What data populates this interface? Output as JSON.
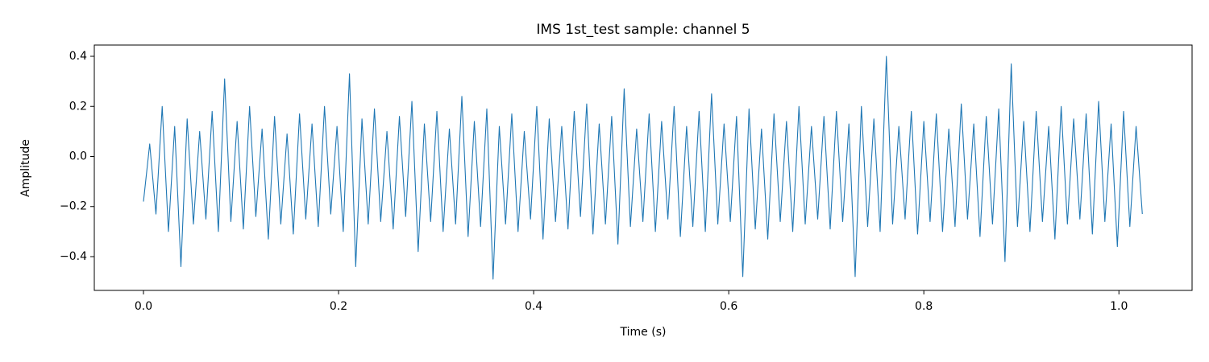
{
  "chart_data": {
    "type": "line",
    "title": "IMS 1st_test sample: channel 5",
    "xlabel": "Time (s)",
    "ylabel": "Amplitude",
    "color": "#1f77b4",
    "grid": false,
    "xlim": [
      -0.0504,
      1.075
    ],
    "ylim": [
      -0.535,
      0.445
    ],
    "xticks": [
      {
        "value": 0,
        "label": "0.0"
      },
      0.2,
      0.4,
      0.6,
      0.8,
      {
        "value": 1,
        "label": "1.0"
      }
    ],
    "yticks": [
      {
        "value": -0.4,
        "label": "−0.4"
      },
      {
        "value": -0.2,
        "label": "−0.2"
      },
      {
        "value": 0,
        "label": "0.0"
      },
      0.2,
      0.4
    ],
    "x": [
      0,
      0.0064,
      0.0128,
      0.0192,
      0.0256,
      0.032,
      0.0384,
      0.0448,
      0.0512,
      0.0576,
      0.064,
      0.0704,
      0.0768,
      0.0832,
      0.0896,
      0.096,
      0.1024,
      0.1088,
      0.1152,
      0.1216,
      0.128,
      0.1344,
      0.1408,
      0.1472,
      0.1536,
      0.16,
      0.1664,
      0.1728,
      0.1792,
      0.1856,
      0.192,
      0.1984,
      0.2048,
      0.2112,
      0.2176,
      0.224,
      0.2304,
      0.2368,
      0.2432,
      0.2496,
      0.256,
      0.2624,
      0.2688,
      0.2752,
      0.2816,
      0.288,
      0.2944,
      0.3008,
      0.3072,
      0.3136,
      0.32,
      0.3264,
      0.3328,
      0.3392,
      0.3456,
      0.352,
      0.3584,
      0.3648,
      0.3712,
      0.3776,
      0.384,
      0.3904,
      0.3968,
      0.4032,
      0.4096,
      0.416,
      0.4224,
      0.4288,
      0.4352,
      0.4416,
      0.448,
      0.4544,
      0.4608,
      0.4672,
      0.4736,
      0.48,
      0.4864,
      0.4928,
      0.4992,
      0.5056,
      0.512,
      0.5184,
      0.5248,
      0.5312,
      0.5376,
      0.544,
      0.5504,
      0.5568,
      0.5632,
      0.5696,
      0.576,
      0.5824,
      0.5888,
      0.5952,
      0.6016,
      0.608,
      0.6144,
      0.6208,
      0.6272,
      0.6336,
      0.64,
      0.6464,
      0.6528,
      0.6592,
      0.6656,
      0.672,
      0.6784,
      0.6848,
      0.6912,
      0.6976,
      0.704,
      0.7104,
      0.7168,
      0.7232,
      0.7296,
      0.736,
      0.7424,
      0.7488,
      0.7552,
      0.7616,
      0.768,
      0.7744,
      0.7808,
      0.7872,
      0.7936,
      0.8,
      0.8064,
      0.8128,
      0.8192,
      0.8256,
      0.832,
      0.8384,
      0.8448,
      0.8512,
      0.8576,
      0.864,
      0.8704,
      0.8768,
      0.8832,
      0.8896,
      0.896,
      0.9024,
      0.9088,
      0.9152,
      0.9216,
      0.928,
      0.9344,
      0.9408,
      0.9472,
      0.9536,
      0.96,
      0.9664,
      0.9728,
      0.9792,
      0.9856,
      0.992,
      0.9984,
      1.0048,
      1.0112,
      1.0176,
      1.024
    ],
    "values": [
      -0.18,
      0.05,
      -0.23,
      0.2,
      -0.3,
      0.12,
      -0.44,
      0.15,
      -0.27,
      0.1,
      -0.25,
      0.18,
      -0.3,
      0.31,
      -0.26,
      0.14,
      -0.29,
      0.2,
      -0.24,
      0.11,
      -0.33,
      0.16,
      -0.27,
      0.09,
      -0.31,
      0.17,
      -0.25,
      0.13,
      -0.28,
      0.2,
      -0.23,
      0.12,
      -0.3,
      0.33,
      -0.44,
      0.15,
      -0.27,
      0.19,
      -0.26,
      0.1,
      -0.29,
      0.16,
      -0.24,
      0.22,
      -0.38,
      0.13,
      -0.26,
      0.18,
      -0.3,
      0.11,
      -0.27,
      0.24,
      -0.32,
      0.14,
      -0.28,
      0.19,
      -0.49,
      0.12,
      -0.27,
      0.17,
      -0.3,
      0.1,
      -0.25,
      0.2,
      -0.33,
      0.15,
      -0.26,
      0.12,
      -0.29,
      0.18,
      -0.24,
      0.21,
      -0.31,
      0.13,
      -0.27,
      0.16,
      -0.35,
      0.27,
      -0.28,
      0.11,
      -0.26,
      0.17,
      -0.3,
      0.14,
      -0.25,
      0.2,
      -0.32,
      0.12,
      -0.28,
      0.18,
      -0.3,
      0.25,
      -0.27,
      0.13,
      -0.26,
      0.16,
      -0.48,
      0.19,
      -0.29,
      0.11,
      -0.33,
      0.17,
      -0.26,
      0.14,
      -0.3,
      0.2,
      -0.27,
      0.12,
      -0.25,
      0.16,
      -0.29,
      0.18,
      -0.26,
      0.13,
      -0.48,
      0.2,
      -0.28,
      0.15,
      -0.3,
      0.4,
      -0.27,
      0.12,
      -0.25,
      0.18,
      -0.31,
      0.14,
      -0.26,
      0.17,
      -0.3,
      0.11,
      -0.28,
      0.21,
      -0.25,
      0.13,
      -0.32,
      0.16,
      -0.27,
      0.19,
      -0.42,
      0.37,
      -0.28,
      0.14,
      -0.3,
      0.18,
      -0.26,
      0.12,
      -0.33,
      0.2,
      -0.27,
      0.15,
      -0.25,
      0.17,
      -0.31,
      0.22,
      -0.26,
      0.13,
      -0.36,
      0.18,
      -0.28,
      0.12,
      -0.23
    ]
  }
}
